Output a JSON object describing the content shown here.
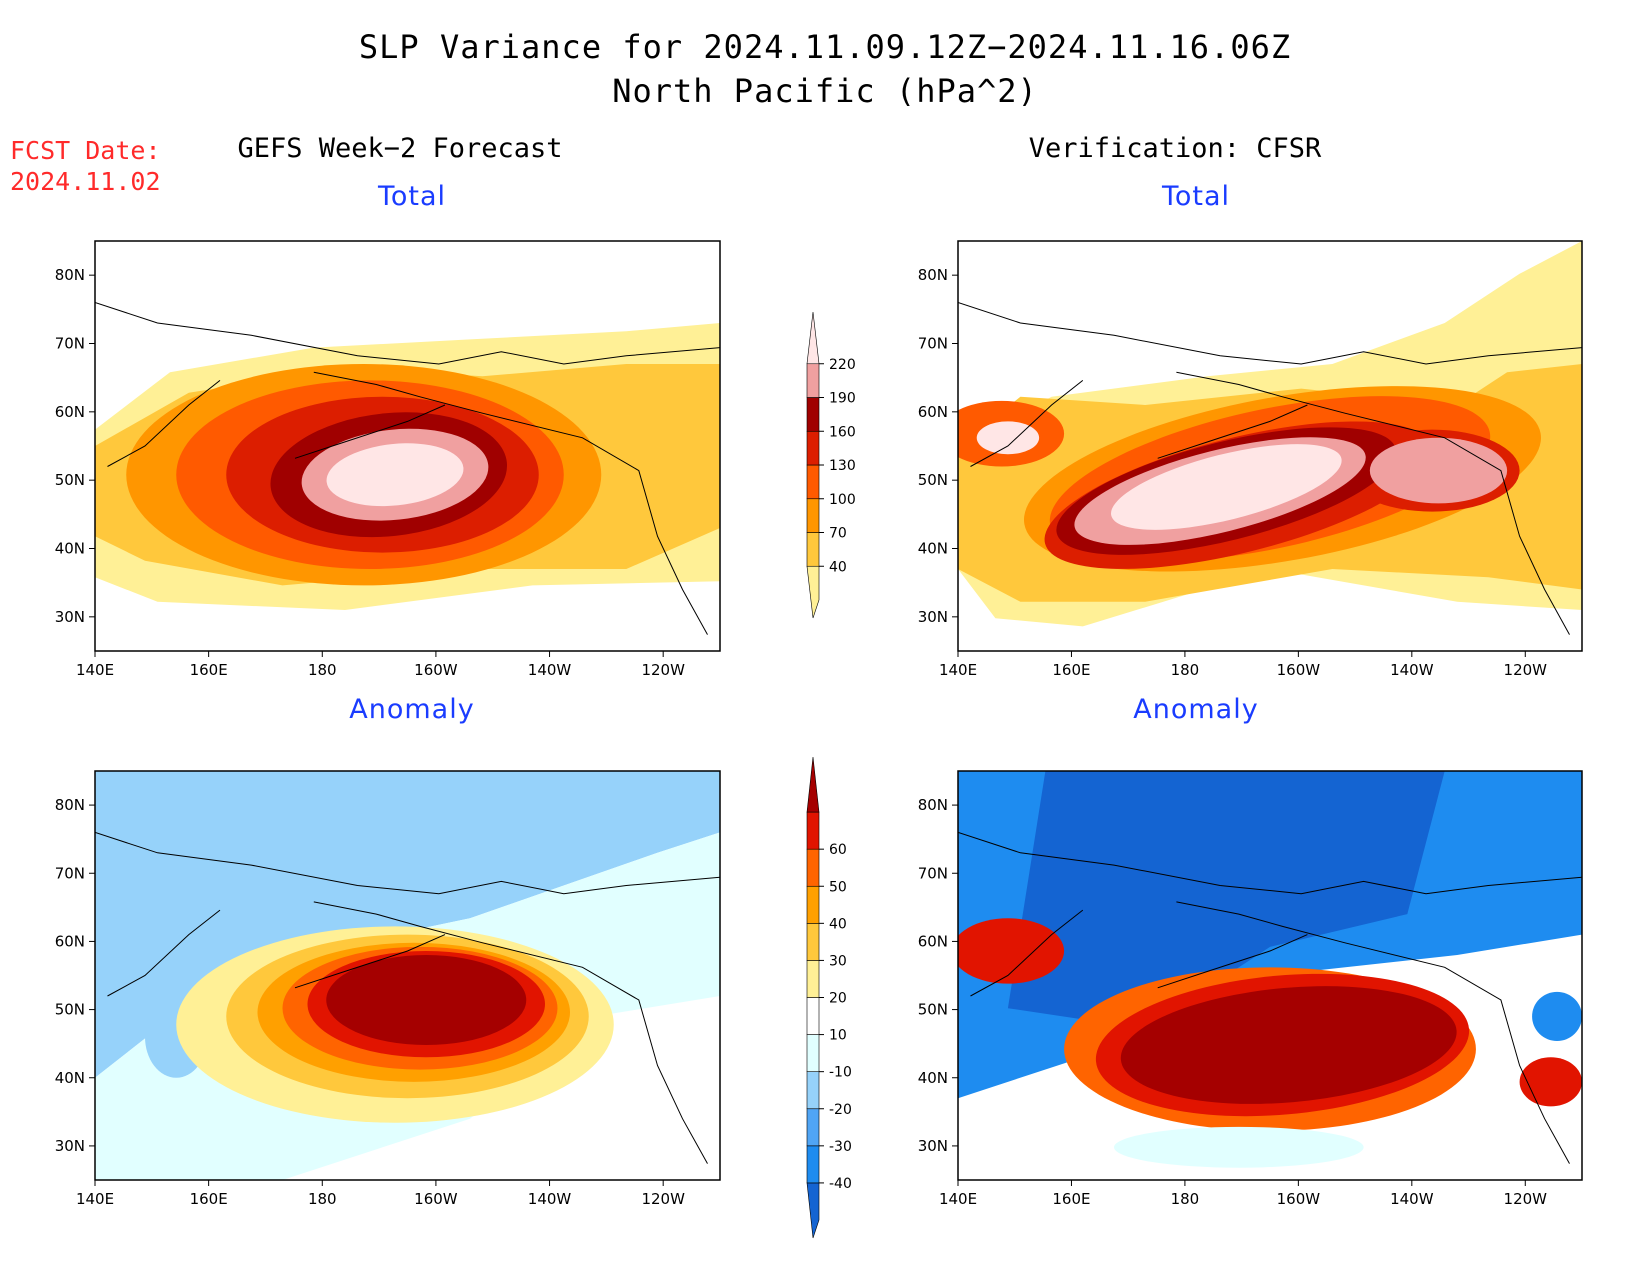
{
  "header": {
    "title": "SLP Variance for 2024.11.09.12Z−2024.11.16.06Z",
    "subtitle": "North Pacific (hPa^2)",
    "fcst_label": "FCST Date:",
    "fcst_date": "2024.11.02"
  },
  "columns": {
    "left": "GEFS Week−2 Forecast",
    "right": "Verification: CFSR"
  },
  "panels": {
    "top_left": "Total",
    "top_right": "Total",
    "bottom_left": "Anomaly",
    "bottom_right": "Anomaly"
  },
  "axes": {
    "lon_ticks": [
      "140E",
      "160E",
      "180",
      "160W",
      "140W",
      "120W"
    ],
    "lat_ticks": [
      "30N",
      "40N",
      "50N",
      "60N",
      "70N",
      "80N"
    ],
    "lon_range": [
      140,
      250
    ],
    "lat_range": [
      25,
      85
    ]
  },
  "colorbars": {
    "total": {
      "levels": [
        "40",
        "70",
        "100",
        "130",
        "160",
        "190",
        "220"
      ],
      "colors": [
        "#fff096",
        "#ffc83c",
        "#ff9600",
        "#ff5a00",
        "#dc1e00",
        "#a00000",
        "#f0a0a0",
        "#ffe6e6"
      ]
    },
    "anomaly": {
      "levels": [
        "-40",
        "-30",
        "-20",
        "-10",
        "10",
        "20",
        "30",
        "40",
        "50",
        "60"
      ],
      "colors": [
        "#1464d2",
        "#1e8cf0",
        "#50a5f5",
        "#96d2fa",
        "#e1ffff",
        "#ffffff",
        "#fff096",
        "#ffc83c",
        "#ffa000",
        "#ff6400",
        "#e11400",
        "#a50000"
      ]
    }
  }
}
